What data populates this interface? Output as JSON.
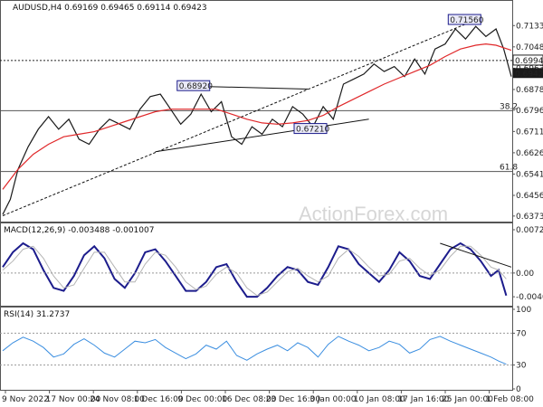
{
  "chart_data": [
    {
      "type": "line",
      "panel": "price",
      "title": "AUDUSD,H4  0.69169 0.69465 0.69114 0.69423",
      "watermark": "ActionForex.com",
      "y_ticks": [
        "0.71335",
        "0.70485",
        "0.69635",
        "0.68785",
        "0.67960",
        "0.67110",
        "0.66260",
        "0.65410",
        "0.64560",
        "0.63735"
      ],
      "y_values": [
        0.71335,
        0.70485,
        0.69635,
        0.68785,
        0.6796,
        0.6711,
        0.6626,
        0.6541,
        0.6456,
        0.63735
      ],
      "ylim": [
        0.6355,
        0.7185
      ],
      "last_price": "0.69423",
      "last_price_value": 0.69423,
      "level_label": "0.69940",
      "level_value": 0.6994,
      "fib_levels": [
        {
          "label": "38.2",
          "value": 0.6794
        },
        {
          "label": "61.8",
          "value": 0.6551
        }
      ],
      "annotations": [
        {
          "label": "0.71560",
          "value": 0.7156,
          "xfrac": 0.908
        },
        {
          "label": "0.68920",
          "value": 0.6892,
          "xfrac": 0.375
        },
        {
          "label": "0.67210",
          "value": 0.6721,
          "xfrac": 0.605
        }
      ],
      "series": [
        {
          "name": "",
          "kind": "price",
          "x": [
            0,
            1.5,
            3,
            5,
            7,
            9,
            11,
            13,
            15,
            17,
            19,
            21,
            23,
            25,
            27,
            29,
            31,
            33,
            35,
            37,
            39,
            41,
            43,
            45,
            47,
            49,
            51,
            53,
            55,
            57,
            59,
            61,
            63,
            65,
            67,
            69,
            71,
            73,
            75,
            77,
            79,
            81,
            83,
            85,
            87,
            89,
            91,
            93,
            95,
            97,
            98.5,
            100
          ],
          "values": [
            0.638,
            0.644,
            0.656,
            0.665,
            0.672,
            0.677,
            0.672,
            0.676,
            0.668,
            0.666,
            0.672,
            0.676,
            0.674,
            0.672,
            0.68,
            0.685,
            0.686,
            0.68,
            0.674,
            0.678,
            0.686,
            0.679,
            0.683,
            0.669,
            0.666,
            0.673,
            0.67,
            0.676,
            0.673,
            0.681,
            0.678,
            0.673,
            0.681,
            0.676,
            0.69,
            0.692,
            0.694,
            0.698,
            0.695,
            0.697,
            0.693,
            0.7,
            0.694,
            0.704,
            0.706,
            0.712,
            0.708,
            0.713,
            0.709,
            0.712,
            0.704,
            0.693
          ]
        },
        {
          "name": "",
          "kind": "ma",
          "x": [
            0,
            3,
            6,
            9,
            12,
            15,
            18,
            21,
            24,
            27,
            30,
            33,
            36,
            39,
            42,
            45,
            48,
            51,
            54,
            57,
            60,
            63,
            66,
            69,
            72,
            75,
            78,
            81,
            84,
            87,
            90,
            93,
            95,
            97,
            98.5,
            100
          ],
          "values": [
            0.648,
            0.656,
            0.662,
            0.666,
            0.669,
            0.67,
            0.671,
            0.673,
            0.675,
            0.677,
            0.679,
            0.68,
            0.68,
            0.68,
            0.68,
            0.678,
            0.676,
            0.6745,
            0.674,
            0.6745,
            0.6755,
            0.6775,
            0.681,
            0.684,
            0.687,
            0.69,
            0.6925,
            0.695,
            0.6975,
            0.701,
            0.704,
            0.7055,
            0.706,
            0.7055,
            0.7045,
            0.7035
          ]
        },
        {
          "name": "",
          "kind": "trend",
          "x": [
            0,
            93
          ],
          "values": [
            0.6375,
            0.7156
          ]
        },
        {
          "name": "",
          "kind": "trend",
          "x": [
            30,
            72
          ],
          "values": [
            0.663,
            0.676
          ]
        },
        {
          "name": "",
          "kind": "trend",
          "x": [
            37,
            60
          ],
          "values": [
            0.6892,
            0.688
          ]
        }
      ]
    },
    {
      "type": "line",
      "panel": "macd",
      "title": "MACD(12,26,9) -0.003488 -0.001007",
      "y_ticks": [
        "0.007291",
        "0.00",
        "-0.004001"
      ],
      "y_values": [
        0.007291,
        0.0,
        -0.004001
      ],
      "ylim": [
        -0.0052,
        0.0079
      ],
      "series": [
        {
          "name": "",
          "kind": "macd",
          "x": [
            0,
            2,
            4,
            6,
            8,
            10,
            12,
            14,
            16,
            18,
            20,
            22,
            24,
            26,
            28,
            30,
            32,
            34,
            36,
            38,
            40,
            42,
            44,
            46,
            48,
            50,
            52,
            54,
            56,
            58,
            60,
            62,
            64,
            66,
            68,
            70,
            72,
            74,
            76,
            78,
            80,
            82,
            84,
            86,
            88,
            90,
            92,
            94,
            96,
            97.5,
            99
          ],
          "values": [
            0.001,
            0.0035,
            0.005,
            0.004,
            0.0005,
            -0.0025,
            -0.003,
            -0.0005,
            0.003,
            0.0045,
            0.0025,
            -0.001,
            -0.0025,
            0.0,
            0.0035,
            0.004,
            0.002,
            -0.0005,
            -0.003,
            -0.003,
            -0.0015,
            0.001,
            0.0015,
            -0.0015,
            -0.004,
            -0.004,
            -0.0025,
            -0.0005,
            0.001,
            0.0005,
            -0.0015,
            -0.002,
            0.001,
            0.0045,
            0.004,
            0.0015,
            0.0,
            -0.0015,
            0.0005,
            0.0035,
            0.002,
            -0.0005,
            -0.001,
            0.0015,
            0.004,
            0.005,
            0.004,
            0.002,
            -0.0005,
            0.0005,
            -0.0038
          ]
        },
        {
          "name": "",
          "kind": "signal",
          "x": [
            0,
            2,
            4,
            6,
            8,
            10,
            12,
            14,
            16,
            18,
            20,
            22,
            24,
            26,
            28,
            30,
            32,
            34,
            36,
            38,
            40,
            42,
            44,
            46,
            48,
            50,
            52,
            54,
            56,
            58,
            60,
            62,
            64,
            66,
            68,
            70,
            72,
            74,
            76,
            78,
            80,
            82,
            84,
            86,
            88,
            90,
            92,
            94,
            96,
            97.5,
            99
          ],
          "values": [
            0.0005,
            0.002,
            0.004,
            0.0045,
            0.0025,
            -0.0005,
            -0.0025,
            -0.002,
            0.0008,
            0.0035,
            0.0035,
            0.001,
            -0.0015,
            -0.0015,
            0.0015,
            0.0035,
            0.003,
            0.001,
            -0.0015,
            -0.0028,
            -0.0022,
            -0.0002,
            0.001,
            0.0,
            -0.0025,
            -0.0038,
            -0.0032,
            -0.0015,
            0.0002,
            0.0008,
            -0.0005,
            -0.0015,
            -0.0005,
            0.0025,
            0.004,
            0.0028,
            0.001,
            -0.0005,
            -0.0002,
            0.002,
            0.0025,
            0.0008,
            -0.0004,
            0.0005,
            0.0028,
            0.0045,
            0.0045,
            0.003,
            0.001,
            0.0005,
            -0.001
          ]
        },
        {
          "name": "",
          "kind": "trend",
          "x": [
            86,
            100
          ],
          "values": [
            0.005,
            0.001
          ]
        }
      ]
    },
    {
      "type": "line",
      "panel": "rsi",
      "title": "RSI(14) 31.2737",
      "y_ticks": [
        "100",
        "70",
        "30",
        "0"
      ],
      "y_values": [
        100,
        70,
        30,
        0
      ],
      "ylim": [
        0,
        100
      ],
      "series": [
        {
          "name": "",
          "kind": "rsi",
          "x": [
            0,
            2,
            4,
            6,
            8,
            10,
            12,
            14,
            16,
            18,
            20,
            22,
            24,
            26,
            28,
            30,
            32,
            34,
            36,
            38,
            40,
            42,
            44,
            46,
            48,
            50,
            52,
            54,
            56,
            58,
            60,
            62,
            64,
            66,
            68,
            70,
            72,
            74,
            76,
            78,
            80,
            82,
            84,
            86,
            88,
            90,
            92,
            94,
            96,
            97.5,
            99
          ],
          "values": [
            48,
            58,
            65,
            60,
            52,
            40,
            44,
            56,
            63,
            55,
            45,
            40,
            50,
            60,
            58,
            62,
            52,
            45,
            38,
            44,
            55,
            50,
            60,
            42,
            36,
            44,
            50,
            55,
            48,
            58,
            52,
            40,
            56,
            66,
            60,
            55,
            48,
            52,
            60,
            56,
            45,
            50,
            62,
            66,
            60,
            55,
            50,
            45,
            40,
            35,
            31
          ]
        }
      ],
      "ref_lines": [
        70,
        30
      ]
    }
  ],
  "x_axis_labels": [
    "9 Nov 2022",
    "17 Nov 00:00",
    "24 Nov 08:00",
    "1 Dec 16:00",
    "9 Dec 00:00",
    "16 Dec 08:00",
    "23 Dec 16:00",
    "3 Jan 00:00",
    "10 Jan 08:00",
    "17 Jan 16:00",
    "25 Jan 00:00",
    "1 Feb 08:00"
  ],
  "colors": {
    "price": "#1a1a1a",
    "ma": "#e0282a",
    "trend": "#111111",
    "dashed": "#333333",
    "macd": "#1c1c8c",
    "signal": "#b4b4b4",
    "rsi": "#3b8ee0",
    "grid": "#555555",
    "annot_fill": "#e9e9f7",
    "annot_stroke": "#1c1c8c",
    "price_tag": "#1a1a1a"
  }
}
